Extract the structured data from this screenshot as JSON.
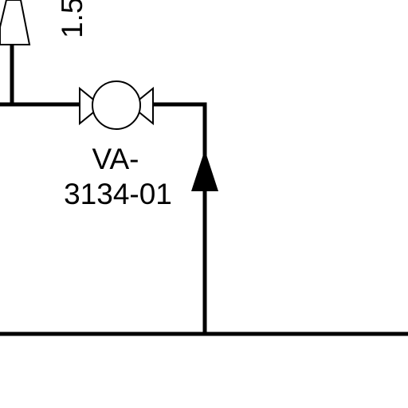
{
  "diagram": {
    "background": "#ffffff",
    "line_color": "#000000",
    "valve": {
      "icon": "globe-valve-icon",
      "tag_line1": "VA-",
      "tag_line2": "3134-01"
    },
    "top_label": "1.5",
    "flow_arrow": {
      "icon": "flow-arrow-up-icon",
      "direction": "up"
    },
    "reducer": {
      "icon": "reducer-icon"
    }
  }
}
